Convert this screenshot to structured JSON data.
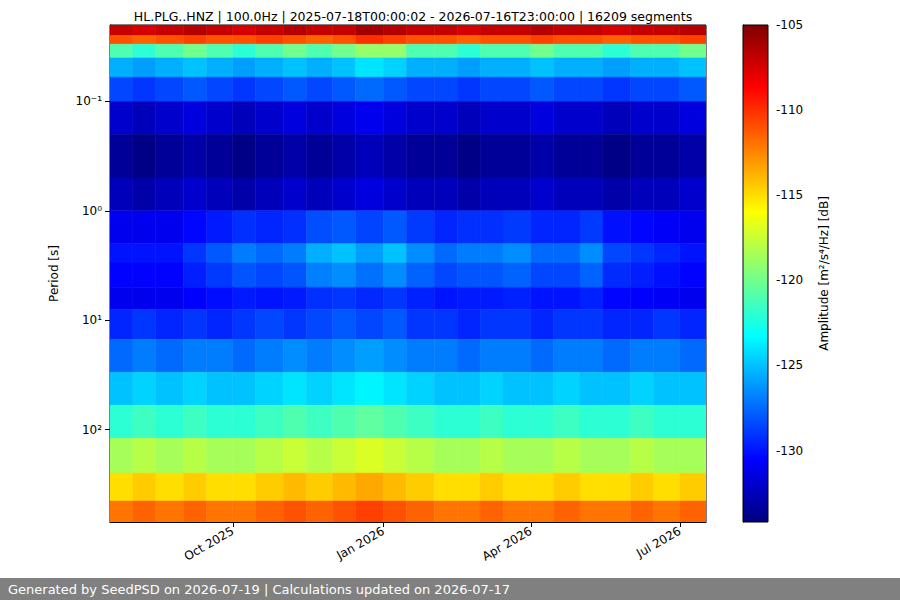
{
  "chart_data": {
    "type": "heatmap",
    "title": "HL.PLG..HNZ | 100.0Hz | 2025-07-18T00:00:02 - 2026-07-16T23:00:00 | 16209 segments",
    "footer": "Generated by SeedPSD on 2026-07-19 | Calculations updated on 2026-07-17",
    "y_label": "Period [s]",
    "colorbar_label": "Amplitude [m²/s⁴/Hz] [dB]",
    "log": "y",
    "grid": true,
    "xlim": [
      "2025-07-18T00:00:02",
      "2026-07-16T23:00:00"
    ],
    "xticks": [
      {
        "value": "2025-10-01",
        "label": "Oct 2025"
      },
      {
        "value": "2026-01-01",
        "label": "Jan 2026"
      },
      {
        "value": "2026-04-01",
        "label": "Apr 2026"
      },
      {
        "value": "2026-07-01",
        "label": "Jul 2026"
      }
    ],
    "ylim": [
      0.02,
      700
    ],
    "yticks": [
      {
        "value": 0.1,
        "label": "10⁻¹"
      },
      {
        "value": 1,
        "label": "10⁰"
      },
      {
        "value": 10,
        "label": "10¹"
      },
      {
        "value": 100,
        "label": "10²"
      }
    ],
    "x_edges": [
      "2025-07-18T00:00:02",
      "2025-08-01",
      "2025-08-15",
      "2025-09-01",
      "2025-09-15",
      "2025-10-01",
      "2025-10-15",
      "2025-11-01",
      "2025-11-15",
      "2025-12-01",
      "2025-12-15",
      "2026-01-01",
      "2026-01-15",
      "2026-02-01",
      "2026-02-15",
      "2026-03-01",
      "2026-03-15",
      "2026-04-01",
      "2026-04-15",
      "2026-05-01",
      "2026-05-15",
      "2026-06-01",
      "2026-06-15",
      "2026-07-01",
      "2026-07-16T23:00:00"
    ],
    "y_edges": [
      0.02,
      0.025,
      0.03,
      0.04,
      0.06,
      0.1,
      0.2,
      0.5,
      1,
      2,
      3,
      5,
      8,
      15,
      30,
      60,
      120,
      250,
      450,
      700
    ],
    "cells": [
      [
        -107,
        -107.5,
        -107,
        -106.5,
        -107,
        -107.5,
        -107,
        -106.5,
        -107,
        -107,
        -106,
        -106.5,
        -107,
        -107,
        -107.5,
        -107,
        -107,
        -106.5,
        -107,
        -107,
        -107.5,
        -107,
        -107,
        -106.5
      ],
      [
        -111,
        -111.5,
        -111,
        -110.5,
        -111,
        -111,
        -110.5,
        -111,
        -111.5,
        -111,
        -110,
        -110.5,
        -111,
        -111,
        -111.5,
        -111,
        -111,
        -110.5,
        -111,
        -111,
        -111.5,
        -111,
        -111,
        -110.5
      ],
      [
        -121,
        -122,
        -121,
        -120,
        -121,
        -122,
        -121,
        -120,
        -121,
        -120,
        -119,
        -119,
        -121,
        -121,
        -122,
        -121,
        -121,
        -120,
        -121,
        -121,
        -122,
        -121,
        -121,
        -120
      ],
      [
        -125.5,
        -126,
        -125.5,
        -125,
        -125.5,
        -126,
        -125.5,
        -125,
        -125.5,
        -125,
        -124,
        -124.5,
        -125.5,
        -125.5,
        -126,
        -125.5,
        -125.5,
        -125,
        -125.5,
        -125.5,
        -126,
        -125.5,
        -125.5,
        -125
      ],
      [
        -128.5,
        -129,
        -128.5,
        -128,
        -128.5,
        -129,
        -128.5,
        -128,
        -128.5,
        -128,
        -127.5,
        -128,
        -128.5,
        -128.5,
        -129,
        -128.5,
        -128.5,
        -128,
        -128.5,
        -128.5,
        -129,
        -128.5,
        -128.5,
        -128
      ],
      [
        -132,
        -132.5,
        -132,
        -131.5,
        -132,
        -132.5,
        -132,
        -131.5,
        -132,
        -131.5,
        -131,
        -131.5,
        -132,
        -132,
        -132.5,
        -132,
        -132,
        -131.5,
        -132,
        -132,
        -132.5,
        -132,
        -132,
        -131.5
      ],
      [
        -133.5,
        -134,
        -133.5,
        -133,
        -133.5,
        -134,
        -133.5,
        -133,
        -133.5,
        -133,
        -132.5,
        -133,
        -133.5,
        -133.5,
        -134,
        -133.5,
        -133.5,
        -133,
        -133.5,
        -133.5,
        -134,
        -133.5,
        -133.5,
        -133
      ],
      [
        -132.5,
        -133,
        -132.5,
        -132,
        -132.5,
        -133,
        -132.5,
        -132,
        -132.5,
        -132,
        -131.5,
        -132,
        -132.5,
        -132.5,
        -133,
        -132.5,
        -132.5,
        -132,
        -132.5,
        -132.5,
        -133,
        -132.5,
        -132.5,
        -132
      ],
      [
        -131,
        -131,
        -131,
        -130.4,
        -129.8,
        -129.2,
        -129.5,
        -129.2,
        -128.3,
        -128,
        -128.6,
        -128,
        -128.9,
        -129.5,
        -129.2,
        -129.2,
        -128.9,
        -129.5,
        -129.5,
        -128.9,
        -130.1,
        -130.4,
        -130.7,
        -131
      ],
      [
        -130,
        -130,
        -130,
        -129,
        -128,
        -127,
        -127.5,
        -127,
        -125.5,
        -125,
        -126,
        -125,
        -126.5,
        -127.5,
        -127,
        -127,
        -126.5,
        -127.5,
        -127.5,
        -126.5,
        -128.5,
        -129,
        -129.5,
        -130
      ],
      [
        -130.5,
        -130.5,
        -130.5,
        -129.7,
        -128.9,
        -128.1,
        -128.5,
        -128.1,
        -126.9,
        -126.5,
        -127.3,
        -126.5,
        -127.7,
        -128.5,
        -128.1,
        -128.1,
        -127.7,
        -128.5,
        -128.5,
        -127.7,
        -129.3,
        -129.7,
        -130.1,
        -130.5
      ],
      [
        -131,
        -131,
        -131,
        -130.6,
        -130.2,
        -129.8,
        -130,
        -129.8,
        -129.2,
        -129,
        -129.4,
        -129,
        -129.6,
        -130,
        -129.8,
        -129.8,
        -129.6,
        -130,
        -130,
        -129.6,
        -130.4,
        -130.6,
        -130.8,
        -131
      ],
      [
        -129.5,
        -129,
        -129.5,
        -129,
        -129.5,
        -129,
        -128.5,
        -129,
        -128.5,
        -128,
        -128.5,
        -128,
        -129,
        -129,
        -129.5,
        -129,
        -129,
        -129.5,
        -129,
        -129,
        -129.5,
        -129.5,
        -129,
        -129.5
      ],
      [
        -127.5,
        -127,
        -127.5,
        -127,
        -127,
        -127.5,
        -127,
        -126.5,
        -127,
        -126.5,
        -126,
        -126.5,
        -127,
        -127,
        -127.5,
        -127,
        -127,
        -127.5,
        -127,
        -127,
        -127.5,
        -127,
        -127,
        -127.5
      ],
      [
        -125,
        -124.5,
        -125,
        -124.5,
        -125,
        -125,
        -124.5,
        -124,
        -124.5,
        -124,
        -123.5,
        -124,
        -124.5,
        -125,
        -125,
        -124.5,
        -125,
        -125,
        -124.5,
        -125,
        -125,
        -124.5,
        -125,
        -125
      ],
      [
        -122,
        -121.5,
        -122,
        -121.5,
        -122,
        -122,
        -121.5,
        -121,
        -121.5,
        -121,
        -120.5,
        -121,
        -121.5,
        -122,
        -122,
        -121.5,
        -122,
        -122,
        -121.5,
        -122,
        -122,
        -121.5,
        -122,
        -122
      ],
      [
        -118.5,
        -118,
        -118.5,
        -118,
        -118.5,
        -118.5,
        -118,
        -117.5,
        -118,
        -117.5,
        -117,
        -117.5,
        -118,
        -118.5,
        -118.5,
        -118,
        -118.5,
        -118.5,
        -118,
        -118.5,
        -118.5,
        -118,
        -118.5,
        -118.5
      ],
      [
        -115,
        -114.5,
        -115,
        -114.5,
        -115,
        -115,
        -114.5,
        -114,
        -114.5,
        -114,
        -113.5,
        -114,
        -114.5,
        -115,
        -115,
        -114.5,
        -115,
        -115,
        -114.5,
        -115,
        -115,
        -114.5,
        -115,
        -114.5
      ],
      [
        -112,
        -111.5,
        -112,
        -111.5,
        -112,
        -112,
        -111.5,
        -111,
        -111.5,
        -111,
        -110.5,
        -111,
        -111.5,
        -112,
        -112,
        -111.5,
        -112,
        -112,
        -111.5,
        -112,
        -112,
        -111.5,
        -112,
        -111.5
      ]
    ],
    "colorbar_range": [
      -134.2,
      -105
    ],
    "colorbar_ticks": [
      -130,
      -125,
      -120,
      -115,
      -110,
      -105
    ]
  }
}
